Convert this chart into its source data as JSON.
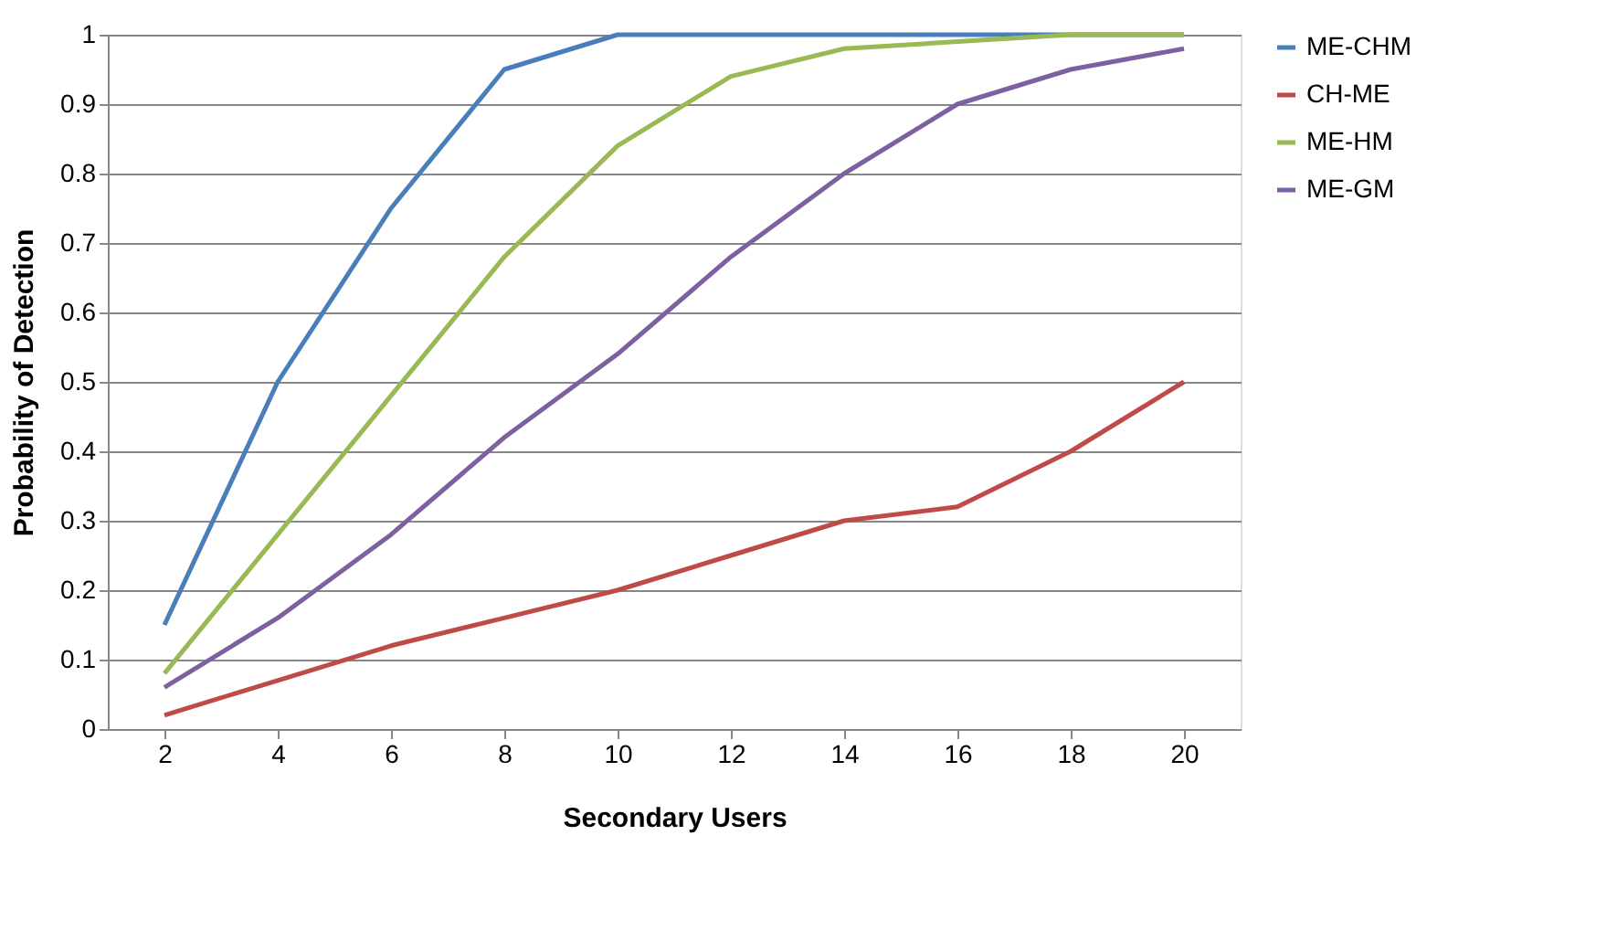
{
  "chart_data": {
    "type": "line",
    "xlabel": "Secondary Users",
    "ylabel": "Probability of Detection",
    "categories": [
      "2",
      "4",
      "6",
      "8",
      "10",
      "12",
      "14",
      "16",
      "18",
      "20"
    ],
    "series": [
      {
        "name": "ME-CHM",
        "color": "#4a7ebb",
        "values": [
          0.15,
          0.5,
          0.75,
          0.95,
          1,
          1,
          1,
          1,
          1,
          1
        ]
      },
      {
        "name": "CH-ME",
        "color": "#be4b48",
        "values": [
          0.02,
          0.07,
          0.12,
          0.16,
          0.2,
          0.25,
          0.3,
          0.32,
          0.4,
          0.5
        ]
      },
      {
        "name": "ME-HM",
        "color": "#98b954",
        "values": [
          0.08,
          0.28,
          0.48,
          0.68,
          0.84,
          0.94,
          0.98,
          0.99,
          1,
          1
        ]
      },
      {
        "name": "ME-GM",
        "color": "#7d60a0",
        "values": [
          0.06,
          0.16,
          0.28,
          0.42,
          0.54,
          0.68,
          0.8,
          0.9,
          0.95,
          0.98
        ]
      }
    ],
    "ylim": [
      0,
      1
    ],
    "yticks": [
      0,
      0.1,
      0.2,
      0.3,
      0.4,
      0.5,
      0.6,
      0.7,
      0.8,
      0.9,
      1
    ],
    "grid": "y",
    "legend": "right",
    "marker": "none",
    "line_style": "solid"
  }
}
